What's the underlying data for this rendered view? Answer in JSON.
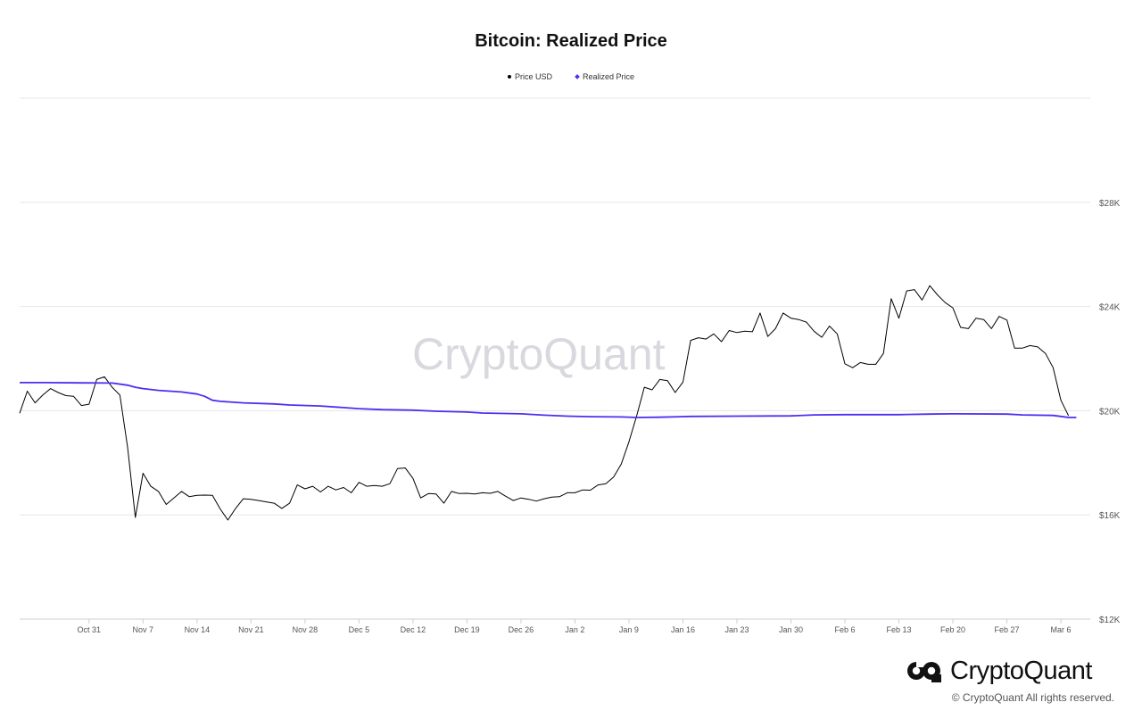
{
  "chart_data": {
    "type": "line",
    "title": "Bitcoin: Realized Price",
    "legend_position": "top-center",
    "grid": true,
    "x_start": "Oct 22",
    "x_end": "Mar 9",
    "x_ticks": [
      "Oct 31",
      "Nov 7",
      "Nov 14",
      "Nov 21",
      "Nov 28",
      "Dec 5",
      "Dec 12",
      "Dec 19",
      "Dec 26",
      "Jan 2",
      "Jan 9",
      "Jan 16",
      "Jan 23",
      "Jan 30",
      "Feb 6",
      "Feb 13",
      "Feb 20",
      "Feb 27",
      "Mar 6"
    ],
    "y_ticks": [
      12000,
      16000,
      20000,
      24000,
      28000
    ],
    "y_tick_labels": [
      "$12K",
      "$16K",
      "$20K",
      "$24K",
      "$28K"
    ],
    "ylim": [
      12000,
      32000
    ],
    "series": [
      {
        "name": "Price USD",
        "color": "#000000",
        "points": [
          [
            "Oct 22",
            19900
          ],
          [
            "Oct 23",
            20750
          ],
          [
            "Oct 24",
            20300
          ],
          [
            "Oct 25",
            20600
          ],
          [
            "Oct 26",
            20850
          ],
          [
            "Oct 27",
            20700
          ],
          [
            "Oct 28",
            20580
          ],
          [
            "Oct 29",
            20550
          ],
          [
            "Oct 30",
            20200
          ],
          [
            "Oct 31",
            20250
          ],
          [
            "Nov 1",
            21200
          ],
          [
            "Nov 2",
            21300
          ],
          [
            "Nov 3",
            20900
          ],
          [
            "Nov 4",
            20600
          ],
          [
            "Nov 5",
            18600
          ],
          [
            "Nov 6",
            15900
          ],
          [
            "Nov 7",
            17600
          ],
          [
            "Nov 8",
            17100
          ],
          [
            "Nov 9",
            16900
          ],
          [
            "Nov 10",
            16400
          ],
          [
            "Nov 11",
            16650
          ],
          [
            "Nov 12",
            16900
          ],
          [
            "Nov 13",
            16700
          ],
          [
            "Nov 14",
            16750
          ],
          [
            "Nov 15",
            16760
          ],
          [
            "Nov 16",
            16750
          ],
          [
            "Nov 17",
            16230
          ],
          [
            "Nov 18",
            15800
          ],
          [
            "Nov 19",
            16250
          ],
          [
            "Nov 20",
            16620
          ],
          [
            "Nov 21",
            16600
          ],
          [
            "Nov 22",
            16550
          ],
          [
            "Nov 23",
            16500
          ],
          [
            "Nov 24",
            16450
          ],
          [
            "Nov 25",
            16250
          ],
          [
            "Nov 26",
            16450
          ],
          [
            "Nov 27",
            17150
          ],
          [
            "Nov 28",
            17000
          ],
          [
            "Nov 29",
            17100
          ],
          [
            "Nov 30",
            16880
          ],
          [
            "Dec 1",
            17100
          ],
          [
            "Dec 2",
            16960
          ],
          [
            "Dec 3",
            17050
          ],
          [
            "Dec 4",
            16850
          ],
          [
            "Dec 5",
            17250
          ],
          [
            "Dec 6",
            17100
          ],
          [
            "Dec 7",
            17130
          ],
          [
            "Dec 8",
            17100
          ],
          [
            "Dec 9",
            17200
          ],
          [
            "Dec 10",
            17780
          ],
          [
            "Dec 11",
            17800
          ],
          [
            "Dec 12",
            17400
          ],
          [
            "Dec 13",
            16650
          ],
          [
            "Dec 14",
            16820
          ],
          [
            "Dec 15",
            16800
          ],
          [
            "Dec 16",
            16450
          ],
          [
            "Dec 17",
            16900
          ],
          [
            "Dec 18",
            16820
          ],
          [
            "Dec 19",
            16830
          ],
          [
            "Dec 20",
            16800
          ],
          [
            "Dec 21",
            16850
          ],
          [
            "Dec 22",
            16830
          ],
          [
            "Dec 23",
            16900
          ],
          [
            "Dec 24",
            16720
          ],
          [
            "Dec 25",
            16550
          ],
          [
            "Dec 26",
            16650
          ],
          [
            "Dec 27",
            16600
          ],
          [
            "Dec 28",
            16530
          ],
          [
            "Dec 29",
            16620
          ],
          [
            "Dec 30",
            16680
          ],
          [
            "Dec 31",
            16700
          ],
          [
            "Jan 1",
            16850
          ],
          [
            "Jan 2",
            16850
          ],
          [
            "Jan 3",
            16960
          ],
          [
            "Jan 4",
            16950
          ],
          [
            "Jan 5",
            17150
          ],
          [
            "Jan 6",
            17200
          ],
          [
            "Jan 7",
            17450
          ],
          [
            "Jan 8",
            17950
          ],
          [
            "Jan 9",
            18800
          ],
          [
            "Jan 10",
            19800
          ],
          [
            "Jan 11",
            20900
          ],
          [
            "Jan 12",
            20800
          ],
          [
            "Jan 13",
            21200
          ],
          [
            "Jan 14",
            21150
          ],
          [
            "Jan 15",
            20700
          ],
          [
            "Jan 16",
            21100
          ],
          [
            "Jan 17",
            22700
          ],
          [
            "Jan 18",
            22800
          ],
          [
            "Jan 19",
            22750
          ],
          [
            "Jan 20",
            22950
          ],
          [
            "Jan 21",
            22650
          ],
          [
            "Jan 22",
            23080
          ],
          [
            "Jan 23",
            23000
          ],
          [
            "Jan 24",
            23050
          ],
          [
            "Jan 25",
            23030
          ],
          [
            "Jan 26",
            23750
          ],
          [
            "Jan 27",
            22850
          ],
          [
            "Jan 28",
            23150
          ],
          [
            "Jan 29",
            23750
          ],
          [
            "Jan 30",
            23550
          ],
          [
            "Jan 31",
            23500
          ],
          [
            "Feb 1",
            23400
          ],
          [
            "Feb 2",
            23050
          ],
          [
            "Feb 3",
            22820
          ],
          [
            "Feb 4",
            23250
          ],
          [
            "Feb 5",
            22950
          ],
          [
            "Feb 6",
            21800
          ],
          [
            "Feb 7",
            21650
          ],
          [
            "Feb 8",
            21850
          ],
          [
            "Feb 9",
            21780
          ],
          [
            "Feb 10",
            21780
          ],
          [
            "Feb 11",
            22200
          ],
          [
            "Feb 12",
            24300
          ],
          [
            "Feb 13",
            23550
          ],
          [
            "Feb 14",
            24600
          ],
          [
            "Feb 15",
            24650
          ],
          [
            "Feb 16",
            24250
          ],
          [
            "Feb 17",
            24800
          ],
          [
            "Feb 18",
            24450
          ],
          [
            "Feb 19",
            24150
          ],
          [
            "Feb 20",
            23950
          ],
          [
            "Feb 21",
            23200
          ],
          [
            "Feb 22",
            23150
          ],
          [
            "Feb 23",
            23550
          ],
          [
            "Feb 24",
            23500
          ],
          [
            "Feb 25",
            23150
          ],
          [
            "Feb 26",
            23620
          ],
          [
            "Feb 27",
            23480
          ],
          [
            "Feb 28",
            22400
          ],
          [
            "Mar 1",
            22400
          ],
          [
            "Mar 2",
            22500
          ],
          [
            "Mar 3",
            22450
          ],
          [
            "Mar 4",
            22200
          ],
          [
            "Mar 5",
            21650
          ],
          [
            "Mar 6",
            20400
          ],
          [
            "Mar 7",
            19800
          ]
        ]
      },
      {
        "name": "Realized Price",
        "color": "#4e2ef0",
        "points": [
          [
            "Oct 22",
            21080
          ],
          [
            "Oct 25",
            21080
          ],
          [
            "Oct 30",
            21070
          ],
          [
            "Nov 3",
            21060
          ],
          [
            "Nov 5",
            20980
          ],
          [
            "Nov 6",
            20900
          ],
          [
            "Nov 7",
            20850
          ],
          [
            "Nov 9",
            20780
          ],
          [
            "Nov 12",
            20720
          ],
          [
            "Nov 14",
            20640
          ],
          [
            "Nov 15",
            20550
          ],
          [
            "Nov 16",
            20400
          ],
          [
            "Nov 17",
            20360
          ],
          [
            "Nov 20",
            20300
          ],
          [
            "Nov 24",
            20260
          ],
          [
            "Nov 26",
            20220
          ],
          [
            "Nov 30",
            20180
          ],
          [
            "Dec 3",
            20120
          ],
          [
            "Dec 5",
            20080
          ],
          [
            "Dec 8",
            20040
          ],
          [
            "Dec 12",
            20020
          ],
          [
            "Dec 15",
            19980
          ],
          [
            "Dec 19",
            19950
          ],
          [
            "Dec 21",
            19910
          ],
          [
            "Dec 26",
            19880
          ],
          [
            "Dec 29",
            19830
          ],
          [
            "Jan 1",
            19790
          ],
          [
            "Jan 4",
            19770
          ],
          [
            "Jan 8",
            19760
          ],
          [
            "Jan 10",
            19740
          ],
          [
            "Jan 13",
            19750
          ],
          [
            "Jan 17",
            19780
          ],
          [
            "Jan 23",
            19790
          ],
          [
            "Jan 30",
            19800
          ],
          [
            "Feb 2",
            19840
          ],
          [
            "Feb 6",
            19850
          ],
          [
            "Feb 13",
            19850
          ],
          [
            "Feb 17",
            19870
          ],
          [
            "Feb 20",
            19880
          ],
          [
            "Feb 27",
            19870
          ],
          [
            "Mar 1",
            19840
          ],
          [
            "Mar 5",
            19820
          ],
          [
            "Mar 6",
            19780
          ],
          [
            "Mar 7",
            19740
          ],
          [
            "Mar 8",
            19740
          ]
        ]
      }
    ]
  },
  "watermark": "CryptoQuant",
  "brand": {
    "name": "CryptoQuant",
    "copyright": "© CryptoQuant All rights reserved."
  }
}
